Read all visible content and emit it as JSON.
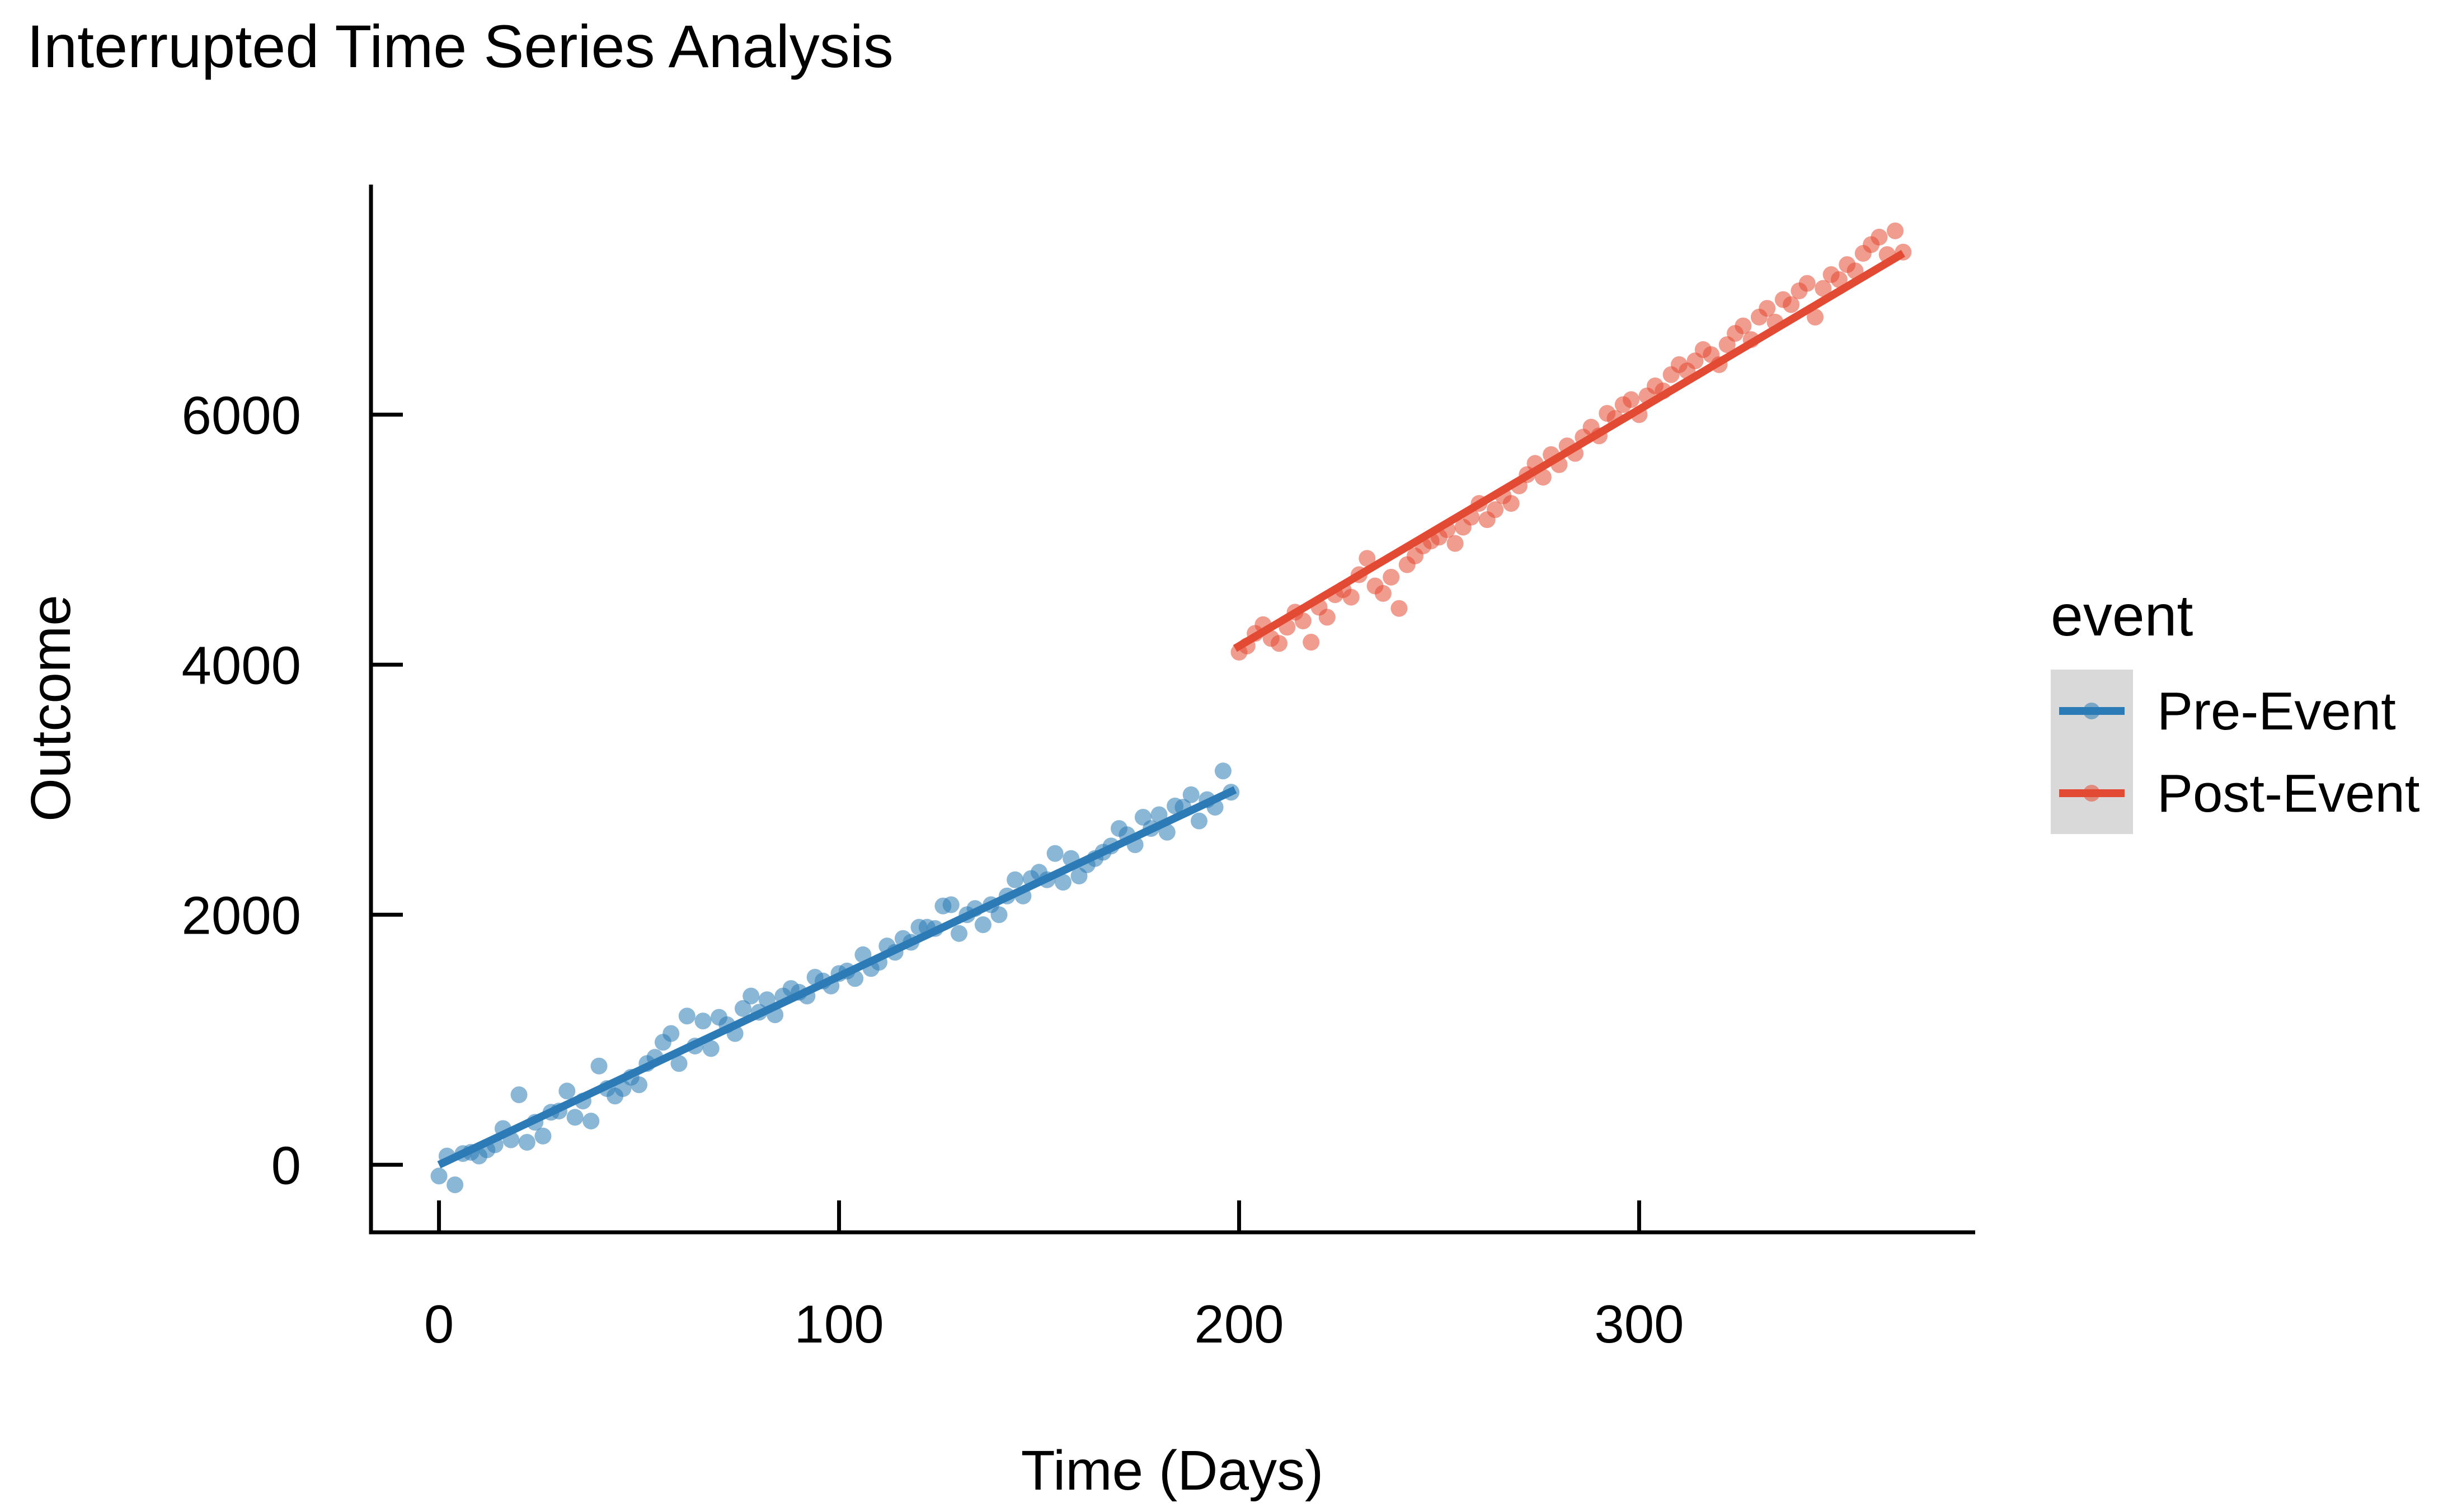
{
  "chart_data": {
    "type": "scatter",
    "title": "Interrupted Time Series Analysis",
    "xlabel": "Time (Days)",
    "ylabel": "Outcome",
    "xlim": [
      -17,
      384
    ],
    "ylim": [
      -540,
      7840
    ],
    "xticks": [
      0,
      100,
      200,
      300
    ],
    "yticks": [
      0,
      2000,
      4000,
      6000
    ],
    "grid": false,
    "legend": {
      "title": "event",
      "position": "right",
      "entries": [
        "Pre-Event",
        "Post-Event"
      ]
    },
    "series": [
      {
        "name": "Pre-Event",
        "color": "#2c7bb6",
        "trend": {
          "x": [
            0,
            199
          ],
          "y": [
            0,
            3000
          ]
        },
        "x": [
          0,
          2,
          4,
          6,
          8,
          10,
          12,
          14,
          16,
          18,
          20,
          22,
          24,
          26,
          28,
          30,
          32,
          34,
          36,
          38,
          40,
          42,
          44,
          46,
          48,
          50,
          52,
          54,
          56,
          58,
          60,
          62,
          64,
          66,
          68,
          70,
          72,
          74,
          76,
          78,
          80,
          82,
          84,
          86,
          88,
          90,
          92,
          94,
          96,
          98,
          100,
          102,
          104,
          106,
          108,
          110,
          112,
          114,
          116,
          118,
          120,
          122,
          124,
          126,
          128,
          130,
          132,
          134,
          136,
          138,
          140,
          142,
          144,
          146,
          148,
          150,
          152,
          154,
          156,
          158,
          160,
          162,
          164,
          166,
          168,
          170,
          172,
          174,
          176,
          178,
          180,
          182,
          184,
          186,
          188,
          190,
          192,
          194,
          196,
          198
        ],
        "y": [
          -90,
          70,
          -160,
          90,
          100,
          70,
          120,
          160,
          290,
          200,
          560,
          180,
          340,
          230,
          420,
          430,
          590,
          380,
          510,
          350,
          790,
          610,
          550,
          610,
          700,
          640,
          810,
          860,
          980,
          1050,
          810,
          1190,
          950,
          1150,
          930,
          1180,
          1120,
          1050,
          1250,
          1350,
          1220,
          1320,
          1200,
          1350,
          1410,
          1380,
          1350,
          1500,
          1470,
          1430,
          1530,
          1550,
          1490,
          1680,
          1570,
          1620,
          1750,
          1700,
          1810,
          1780,
          1900,
          1900,
          1890,
          2070,
          2080,
          1850,
          2000,
          2050,
          1920,
          2080,
          2000,
          2150,
          2280,
          2150,
          2290,
          2340,
          2280,
          2490,
          2260,
          2450,
          2310,
          2400,
          2450,
          2500,
          2550,
          2690,
          2640,
          2560,
          2780,
          2690,
          2800,
          2660,
          2870,
          2860,
          2960,
          2750,
          2920,
          2860,
          3150,
          2980
        ]
      },
      {
        "name": "Post-Event",
        "color": "#e34a33",
        "trend": {
          "x": [
            199,
            366
          ],
          "y": [
            4130,
            7290
          ]
        },
        "x": [
          200,
          202,
          204,
          206,
          208,
          210,
          212,
          214,
          216,
          218,
          220,
          222,
          224,
          226,
          228,
          230,
          232,
          234,
          236,
          238,
          240,
          242,
          244,
          246,
          248,
          250,
          252,
          254,
          256,
          258,
          260,
          262,
          264,
          266,
          268,
          270,
          272,
          274,
          276,
          278,
          280,
          282,
          284,
          286,
          288,
          290,
          292,
          294,
          296,
          298,
          300,
          302,
          304,
          306,
          308,
          310,
          312,
          314,
          316,
          318,
          320,
          322,
          324,
          326,
          328,
          330,
          332,
          334,
          336,
          338,
          340,
          342,
          344,
          346,
          348,
          350,
          352,
          354,
          356,
          358,
          360,
          362,
          364,
          366
        ],
        "y": [
          4100,
          4150,
          4250,
          4320,
          4210,
          4170,
          4300,
          4420,
          4350,
          4180,
          4460,
          4380,
          4560,
          4600,
          4540,
          4720,
          4850,
          4630,
          4570,
          4700,
          4450,
          4800,
          4870,
          4950,
          4990,
          5020,
          5080,
          4970,
          5100,
          5180,
          5290,
          5160,
          5240,
          5350,
          5290,
          5430,
          5520,
          5610,
          5500,
          5680,
          5600,
          5750,
          5690,
          5820,
          5900,
          5830,
          6010,
          5970,
          6080,
          6120,
          6000,
          6150,
          6230,
          6190,
          6320,
          6400,
          6350,
          6430,
          6520,
          6480,
          6400,
          6560,
          6650,
          6710,
          6600,
          6780,
          6850,
          6740,
          6920,
          6880,
          6990,
          7050,
          6780,
          7010,
          7120,
          7080,
          7200,
          7150,
          7290,
          7360,
          7420,
          7280,
          7470,
          7300
        ]
      }
    ]
  }
}
